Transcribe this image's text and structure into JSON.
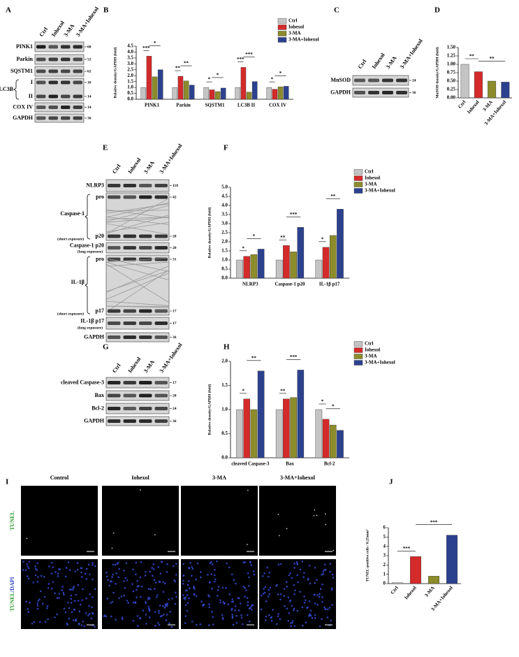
{
  "panel_labels": [
    "A",
    "B",
    "C",
    "D",
    "E",
    "F",
    "G",
    "H",
    "I",
    "J"
  ],
  "blots": [
    {
      "lanes": [
        "Ctrl",
        "Iohexol",
        "3-MA",
        "3-MA+Iohexol"
      ],
      "rows": [
        {
          "label": "PINK1",
          "markers": [
            "60"
          ]
        },
        {
          "label": "Parkin",
          "markers": [
            "52"
          ]
        },
        {
          "label": "SQSTM1",
          "markers": [
            "62"
          ]
        },
        {
          "label": "LC3B",
          "forms": [
            "I",
            "II"
          ],
          "markers": [
            "16",
            "14"
          ]
        },
        {
          "label": "COX IV",
          "markers": [
            "14"
          ]
        },
        {
          "label": "GAPDH",
          "markers": [
            "36"
          ]
        }
      ]
    },
    {
      "lanes": [
        "Ctrl",
        "Iohexol",
        "3-MA",
        "3-MA+Iohexol"
      ],
      "rows": [
        {
          "label": "MnSOD",
          "markers": [
            "24"
          ]
        },
        {
          "label": "GAPDH",
          "markers": [
            "36"
          ]
        }
      ]
    },
    {
      "lanes": [
        "Ctrl",
        "Iohexol",
        "3-MA",
        "3-MA+Iohexol"
      ],
      "rows": [
        {
          "label": "NLRP3",
          "markers": [
            "118"
          ]
        },
        {
          "label": "Caspase-1",
          "sub": "(short exposure)",
          "forms": [
            "pro",
            "p20"
          ],
          "markers": [
            "42",
            "20"
          ]
        },
        {
          "label": "Caspase-1 p20",
          "sub": "(long exposure)",
          "markers": [
            "20"
          ]
        },
        {
          "label": "IL-1β",
          "sub": "(short exposure)",
          "forms": [
            "pro",
            "p17"
          ],
          "markers": [
            "31",
            "17"
          ]
        },
        {
          "label": "IL-1β p17",
          "sub": "(long exposure)",
          "markers": [
            "17"
          ]
        },
        {
          "label": "GAPDH",
          "markers": [
            "36"
          ]
        }
      ]
    },
    {
      "lanes": [
        "Ctrl",
        "Iohexol",
        "3-MA",
        "3-MA+Iohexol"
      ],
      "rows": [
        {
          "label": "cleaved Caspase-3",
          "markers": [
            "17"
          ]
        },
        {
          "label": "Bax",
          "markers": [
            "20"
          ]
        },
        {
          "label": "Bcl-2",
          "markers": [
            "24"
          ]
        },
        {
          "label": "GAPDH",
          "markers": [
            "36"
          ]
        }
      ]
    }
  ],
  "microscopy": {
    "columns": [
      "Control",
      "Iohexol",
      "3-MA",
      "3-MA+Iohexol"
    ],
    "rows": [
      {
        "parts": [
          "TUNEL"
        ]
      },
      {
        "parts": [
          "TUNEL",
          "/DAPI"
        ]
      }
    ]
  },
  "chart_data": [
    {
      "type": "bar",
      "y_label": "Relative density/GAPDH (fold)",
      "categories": [
        "PINK1",
        "Parkin",
        "SQSTM1",
        "LC3B II",
        "COX IV"
      ],
      "series": [
        {
          "name": "Ctrl",
          "color": "#c4c4c4",
          "values": [
            1.0,
            1.0,
            1.0,
            1.0,
            1.0
          ]
        },
        {
          "name": "Iohexol",
          "color": "#d42a2a",
          "values": [
            3.65,
            1.95,
            0.8,
            2.7,
            0.85
          ]
        },
        {
          "name": "3-MA",
          "color": "#8c8c2c",
          "values": [
            1.9,
            1.55,
            0.65,
            0.6,
            1.05
          ]
        },
        {
          "name": "3-MA+Iohexol",
          "color": "#2c418e",
          "values": [
            2.5,
            1.2,
            0.95,
            1.5,
            1.1
          ]
        }
      ],
      "ylim": [
        0,
        4.5
      ],
      "yticks": [
        {
          "value": 0,
          "label": "0.0"
        },
        0.5,
        {
          "value": 1,
          "label": "1.0"
        },
        1.5,
        {
          "value": 2,
          "label": "2.0"
        },
        2.5,
        {
          "value": 3,
          "label": "3.0"
        },
        3.5,
        {
          "value": 4,
          "label": "4.0"
        },
        4.5
      ],
      "significance": [
        "***",
        "*",
        "**",
        "**",
        "*",
        "*",
        "***",
        "***",
        "*",
        "*"
      ]
    },
    {
      "type": "bar",
      "y_label": "MnSOD density/GAPDH (fold)",
      "categories": [
        "Ctrl",
        "Iohexol",
        "3-MA",
        "3-MA+Iohexol"
      ],
      "values": [
        1.0,
        0.78,
        0.5,
        0.47
      ],
      "colors": [
        "#c4c4c4",
        "#d42a2a",
        "#8c8c2c",
        "#2c418e"
      ],
      "ylim": [
        0,
        1.5
      ],
      "yticks": [
        {
          "value": 0,
          "label": "0.00"
        },
        0.25,
        {
          "value": 0.5,
          "label": "0.50"
        },
        0.75,
        {
          "value": 1,
          "label": "1.00"
        },
        1.25,
        {
          "value": 1.5,
          "label": "1.50"
        }
      ],
      "significance": [
        "**",
        "**"
      ]
    },
    {
      "type": "bar",
      "y_label": "Relative density/GAPDH (fold)",
      "categories": [
        "NLRP3",
        "Caspase-1 p20",
        "IL-1β p17"
      ],
      "series": [
        {
          "name": "Ctrl",
          "color": "#c4c4c4",
          "values": [
            1.0,
            1.0,
            1.0
          ]
        },
        {
          "name": "Iohexol",
          "color": "#d42a2a",
          "values": [
            1.2,
            1.8,
            1.7
          ]
        },
        {
          "name": "3-MA",
          "color": "#8c8c2c",
          "values": [
            1.3,
            1.45,
            2.35
          ]
        },
        {
          "name": "3-MA+Iohexol",
          "color": "#2c418e",
          "values": [
            1.6,
            2.8,
            3.8
          ]
        }
      ],
      "ylim": [
        0,
        5
      ],
      "yticks": [
        {
          "value": 0,
          "label": "0.0"
        },
        0.5,
        {
          "value": 1,
          "label": "1.0"
        },
        1.5,
        {
          "value": 2,
          "label": "2.0"
        },
        2.5,
        {
          "value": 3,
          "label": "3.0"
        },
        3.5,
        {
          "value": 4,
          "label": "4.0"
        },
        4.5,
        {
          "value": 5,
          "label": "5.0"
        }
      ],
      "significance": [
        "*",
        "*",
        "**",
        "***",
        "*",
        "**"
      ]
    },
    {
      "type": "bar",
      "y_label": "Relative density/GAPDH (fold)",
      "categories": [
        "cleaved Caspase-3",
        "Bax",
        "Bcl-2"
      ],
      "series": [
        {
          "name": "Ctrl",
          "color": "#c4c4c4",
          "values": [
            1.0,
            1.0,
            1.0
          ]
        },
        {
          "name": "Iohexol",
          "color": "#d42a2a",
          "values": [
            1.22,
            1.22,
            0.8
          ]
        },
        {
          "name": "3-MA",
          "color": "#8c8c2c",
          "values": [
            1.0,
            1.25,
            0.68
          ]
        },
        {
          "name": "3-MA+Iohexol",
          "color": "#2c418e",
          "values": [
            1.8,
            1.82,
            0.57
          ]
        }
      ],
      "ylim": [
        0,
        2
      ],
      "yticks": [
        {
          "value": 0,
          "label": "0.0"
        },
        0.5,
        {
          "value": 1,
          "label": "1.0"
        },
        1.5,
        {
          "value": 2,
          "label": "2.0"
        }
      ],
      "significance": [
        "*",
        "**",
        "**",
        "***",
        "*",
        "*"
      ]
    },
    {
      "type": "bar",
      "y_label": "TUNEL-positive cells / 0.25mm²",
      "categories": [
        "Ctrl",
        "Iohexol",
        "3-MA",
        "3-MA+Iohexol"
      ],
      "values": [
        0.1,
        2.9,
        0.8,
        5.2
      ],
      "colors": [
        "#c4c4c4",
        "#d42a2a",
        "#8c8c2c",
        "#2c418e"
      ],
      "ylim": [
        0,
        6
      ],
      "yticks": [
        0,
        1,
        2,
        3,
        4,
        5,
        6
      ],
      "significance": [
        "***",
        "***"
      ]
    }
  ]
}
